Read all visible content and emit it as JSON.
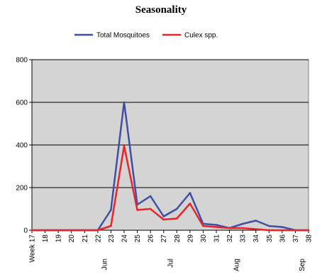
{
  "chart_data": {
    "type": "line",
    "title": "Seasonality",
    "xlabel": "",
    "ylabel": "",
    "ylim": [
      0,
      800
    ],
    "yticks": [
      0,
      200,
      400,
      600,
      800
    ],
    "categories": [
      "Week 17",
      "18",
      "19",
      "20",
      "21",
      "22",
      "23",
      "24",
      "25",
      "26",
      "27",
      "28",
      "29",
      "30",
      "31",
      "32",
      "33",
      "34",
      "35",
      "36",
      "37",
      "38"
    ],
    "month_labels": [
      {
        "label": "Jun",
        "after_week": "22"
      },
      {
        "label": "Jul",
        "after_week": "27"
      },
      {
        "label": "Aug",
        "after_week": "32"
      },
      {
        "label": "Sep",
        "after_week": "37"
      }
    ],
    "grid": true,
    "legend_position": "top-center",
    "plot_background": "#d4d4d4",
    "series": [
      {
        "name": "Total Mosquitoes",
        "color": "#3f4fa3",
        "values": [
          0,
          0,
          0,
          0,
          0,
          0,
          95,
          600,
          120,
          160,
          65,
          100,
          175,
          30,
          25,
          10,
          30,
          45,
          20,
          15,
          0,
          0
        ]
      },
      {
        "name": "Culex spp.",
        "color": "#e8262a",
        "values": [
          0,
          0,
          0,
          0,
          0,
          0,
          20,
          395,
          95,
          100,
          50,
          55,
          125,
          20,
          15,
          10,
          10,
          5,
          0,
          0,
          0,
          0
        ]
      }
    ]
  }
}
